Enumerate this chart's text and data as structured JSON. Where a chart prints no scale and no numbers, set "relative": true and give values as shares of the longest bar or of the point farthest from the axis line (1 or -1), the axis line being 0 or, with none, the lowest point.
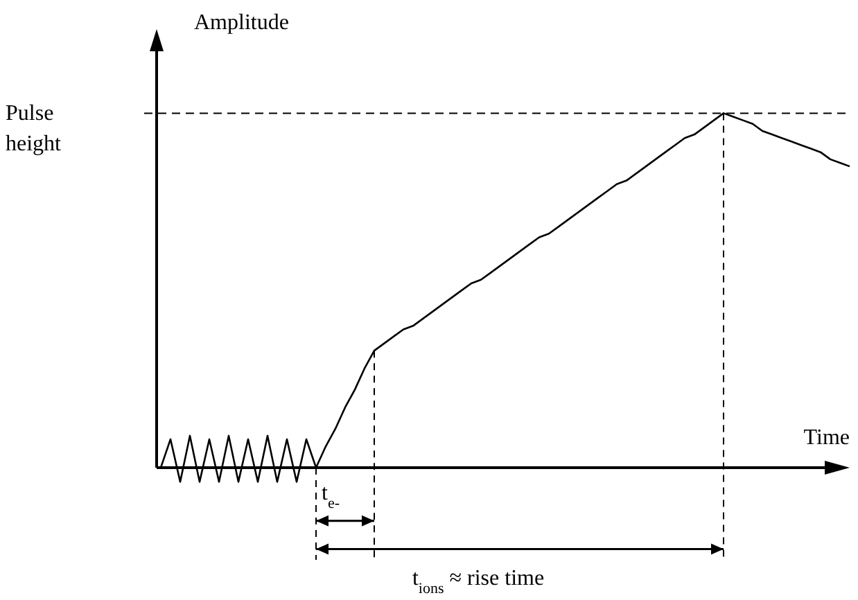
{
  "chart_data": {
    "type": "line",
    "relative": true,
    "ylabel": "Amplitude",
    "xlabel": "Time",
    "color": "#000000",
    "categories": [
      null,
      null,
      null,
      null,
      null,
      null,
      null,
      null,
      null,
      null,
      null,
      null,
      null,
      null,
      null,
      null,
      null,
      null,
      null,
      null,
      null,
      null,
      null,
      null,
      null,
      null,
      null,
      null,
      null,
      null,
      null,
      null,
      null,
      null,
      null,
      null,
      null,
      null,
      null,
      null,
      null,
      null,
      null,
      null,
      null,
      null,
      null,
      null,
      null,
      null,
      null,
      null,
      null,
      null,
      null,
      null,
      null,
      null,
      null,
      null,
      null,
      null,
      null,
      null,
      null,
      null,
      null,
      null,
      null,
      null,
      null,
      null
    ],
    "values": [
      0,
      0.08,
      -0.04,
      0.09,
      -0.04,
      0.08,
      -0.04,
      0.09,
      -0.04,
      0.08,
      -0.04,
      0.09,
      -0.04,
      0.08,
      -0.04,
      0.08,
      0,
      0.06,
      0.11,
      0.17,
      0.22,
      0.28,
      0.33,
      0.35,
      0.37,
      0.39,
      0.4,
      0.42,
      0.44,
      0.46,
      0.48,
      0.5,
      0.52,
      0.53,
      0.55,
      0.57,
      0.59,
      0.61,
      0.63,
      0.65,
      0.66,
      0.68,
      0.7,
      0.72,
      0.74,
      0.76,
      0.78,
      0.8,
      0.81,
      0.83,
      0.85,
      0.87,
      0.89,
      0.91,
      0.93,
      0.94,
      0.96,
      0.98,
      1.0,
      0.99,
      0.98,
      0.97,
      0.95,
      0.94,
      0.93,
      0.92,
      0.91,
      0.9,
      0.89,
      0.87,
      0.86,
      0.85
    ],
    "ref_lines": [
      {
        "axis": "y",
        "value": 1,
        "label": "Pulse height",
        "line_style": "dashed"
      }
    ],
    "annotations": [
      "t$_{e-}$",
      "t$_{ions}$ ≈ rise time"
    ]
  }
}
